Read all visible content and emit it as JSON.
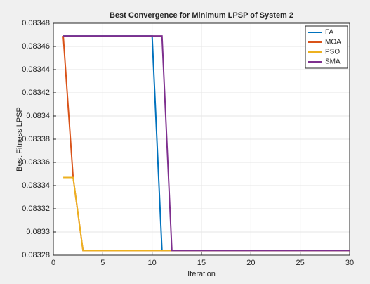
{
  "chart_data": {
    "type": "line",
    "title": "Best Convergence for Minimum LPSP of System 2",
    "x_label": "Iteration",
    "y_label": "Best Fitness LPSP",
    "x": [
      1,
      2,
      3,
      4,
      5,
      6,
      7,
      8,
      9,
      10,
      11,
      12,
      13,
      14,
      15,
      16,
      17,
      18,
      19,
      20,
      21,
      22,
      23,
      24,
      25,
      26,
      27,
      28,
      29,
      30
    ],
    "series": [
      {
        "name": "FA",
        "color": "#0072bd",
        "values": [
          0.083469,
          0.083469,
          0.083469,
          0.083469,
          0.083469,
          0.083469,
          0.083469,
          0.083469,
          0.083469,
          0.083469,
          0.083284,
          0.083284,
          0.083284,
          0.083284,
          0.083284,
          0.083284,
          0.083284,
          0.083284,
          0.083284,
          0.083284,
          0.083284,
          0.083284,
          0.083284,
          0.083284,
          0.083284,
          0.083284,
          0.083284,
          0.083284,
          0.083284,
          0.083284
        ]
      },
      {
        "name": "MOA",
        "color": "#d95319",
        "values": [
          0.083469,
          0.083347,
          0.083284,
          0.083284,
          0.083284,
          0.083284,
          0.083284,
          0.083284,
          0.083284,
          0.083284,
          0.083284,
          0.083284,
          0.083284,
          0.083284,
          0.083284,
          0.083284,
          0.083284,
          0.083284,
          0.083284,
          0.083284,
          0.083284,
          0.083284,
          0.083284,
          0.083284,
          0.083284,
          0.083284,
          0.083284,
          0.083284,
          0.083284,
          0.083284
        ]
      },
      {
        "name": "PSO",
        "color": "#edb120",
        "values": [
          0.083347,
          0.083347,
          0.083284,
          0.083284,
          0.083284,
          0.083284,
          0.083284,
          0.083284,
          0.083284,
          0.083284,
          0.083284,
          0.083284,
          0.083284,
          0.083284,
          0.083284,
          0.083284,
          0.083284,
          0.083284,
          0.083284,
          0.083284,
          0.083284,
          0.083284,
          0.083284,
          0.083284,
          0.083284,
          0.083284,
          0.083284,
          0.083284,
          0.083284,
          0.083284
        ]
      },
      {
        "name": "SMA",
        "color": "#7e2f8e",
        "values": [
          0.083469,
          0.083469,
          0.083469,
          0.083469,
          0.083469,
          0.083469,
          0.083469,
          0.083469,
          0.083469,
          0.083469,
          0.083469,
          0.083284,
          0.083284,
          0.083284,
          0.083284,
          0.083284,
          0.083284,
          0.083284,
          0.083284,
          0.083284,
          0.083284,
          0.083284,
          0.083284,
          0.083284,
          0.083284,
          0.083284,
          0.083284,
          0.083284,
          0.083284,
          0.083284
        ]
      }
    ],
    "xlim": [
      0,
      30
    ],
    "xticks": [
      0,
      5,
      10,
      15,
      20,
      25,
      30
    ],
    "ylim": [
      0.08328,
      0.08348
    ],
    "yticks": [
      0.08328,
      0.0833,
      0.08332,
      0.08334,
      0.08336,
      0.08338,
      0.0834,
      0.08342,
      0.08344,
      0.08346,
      0.08348
    ],
    "grid": true,
    "legend": "northeast"
  }
}
